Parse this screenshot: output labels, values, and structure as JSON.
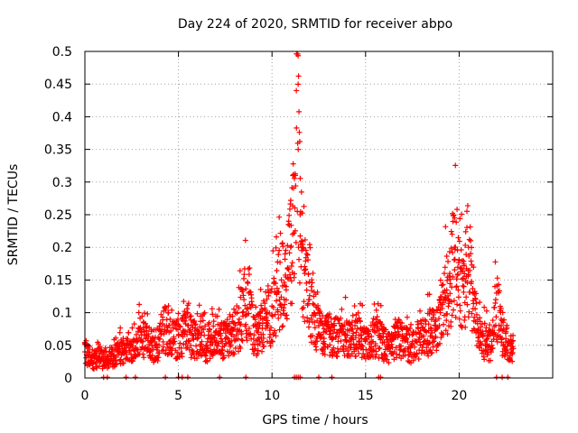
{
  "chart_data": {
    "type": "scatter",
    "title": "Day 224 of 2020, SRMTID for receiver abpo",
    "xlabel": "GPS time / hours",
    "ylabel": "SRMTID / TECUs",
    "xlim": [
      0,
      25
    ],
    "ylim": [
      0,
      0.5
    ],
    "x_ticks": [
      0,
      5,
      10,
      15,
      20
    ],
    "x_tick_labels": [
      "0",
      "5",
      "10",
      "15",
      "20"
    ],
    "y_ticks": [
      0,
      0.05,
      0.1,
      0.15,
      0.2,
      0.25,
      0.3,
      0.35,
      0.4,
      0.45,
      0.5
    ],
    "y_tick_labels": [
      "0",
      "0.05",
      "0.1",
      "0.15",
      "0.2",
      "0.25",
      "0.3",
      "0.35",
      "0.4",
      "0.45",
      "0.5"
    ],
    "grid": true,
    "marker": "+",
    "color": "#ff0000",
    "series": [
      {
        "name": "SRMTID",
        "description": "approximate trend envelope read from the plot",
        "x": [
          0,
          0.25,
          0.5,
          0.75,
          1,
          1.25,
          1.5,
          1.75,
          2,
          2.25,
          2.5,
          2.75,
          3,
          3.25,
          3.5,
          3.75,
          4,
          4.25,
          4.5,
          4.75,
          5,
          5.25,
          5.5,
          5.75,
          6,
          6.25,
          6.5,
          6.75,
          7,
          7.25,
          7.5,
          7.75,
          8,
          8.25,
          8.5,
          8.75,
          9,
          9.25,
          9.5,
          9.75,
          10,
          10.25,
          10.5,
          10.75,
          11,
          11.1,
          11.25,
          11.3,
          11.4,
          11.5,
          11.6,
          11.75,
          12,
          12.25,
          12.5,
          12.75,
          13,
          13.25,
          13.5,
          13.75,
          14,
          14.25,
          14.5,
          14.75,
          15,
          15.25,
          15.5,
          15.75,
          16,
          16.25,
          16.5,
          16.75,
          17,
          17.25,
          17.5,
          17.75,
          18,
          18.25,
          18.5,
          18.75,
          19,
          19.25,
          19.5,
          19.75,
          20,
          20.25,
          20.5,
          20.75,
          21,
          21.25,
          21.5,
          21.75,
          22,
          22.25,
          22.5,
          22.75,
          22.9
        ],
        "values": [
          0.04,
          0.035,
          0.03,
          0.033,
          0.03,
          0.03,
          0.035,
          0.04,
          0.045,
          0.05,
          0.055,
          0.06,
          0.07,
          0.06,
          0.055,
          0.05,
          0.06,
          0.08,
          0.07,
          0.06,
          0.065,
          0.07,
          0.08,
          0.065,
          0.06,
          0.07,
          0.05,
          0.06,
          0.07,
          0.065,
          0.06,
          0.07,
          0.075,
          0.09,
          0.12,
          0.13,
          0.08,
          0.07,
          0.09,
          0.1,
          0.11,
          0.13,
          0.15,
          0.14,
          0.2,
          0.22,
          0.31,
          0.44,
          0.35,
          0.25,
          0.2,
          0.16,
          0.12,
          0.1,
          0.08,
          0.07,
          0.075,
          0.06,
          0.07,
          0.08,
          0.065,
          0.06,
          0.07,
          0.065,
          0.06,
          0.055,
          0.07,
          0.065,
          0.055,
          0.05,
          0.06,
          0.065,
          0.06,
          0.055,
          0.05,
          0.055,
          0.065,
          0.07,
          0.075,
          0.08,
          0.1,
          0.13,
          0.16,
          0.2,
          0.18,
          0.14,
          0.2,
          0.13,
          0.07,
          0.065,
          0.06,
          0.05,
          0.13,
          0.08,
          0.06,
          0.05,
          0.045
        ]
      }
    ]
  }
}
